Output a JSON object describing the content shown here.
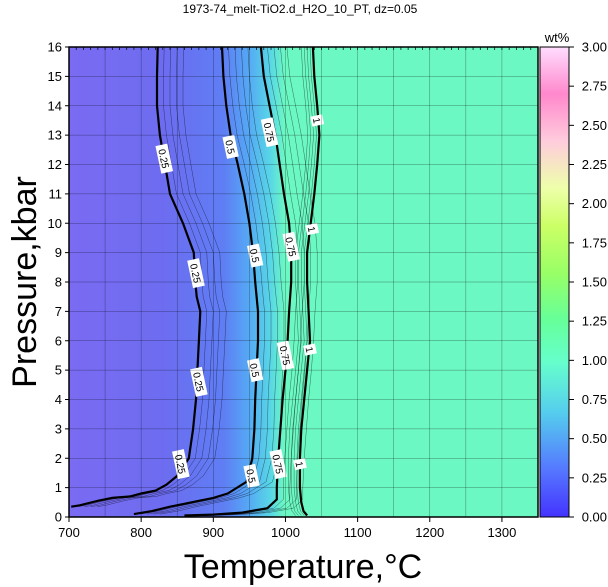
{
  "chart_data": {
    "type": "heatmap",
    "title": "1973-74_melt-TiO2.d_H2O_10_PT, dz=0.05",
    "xlabel": "Temperature,°C",
    "ylabel": "Pressure,kbar",
    "xlim": [
      700,
      1350
    ],
    "ylim": [
      0,
      16
    ],
    "x_ticks": [
      700,
      800,
      900,
      1000,
      1100,
      1200,
      1300
    ],
    "y_ticks": [
      0,
      1,
      2,
      3,
      4,
      5,
      6,
      7,
      8,
      9,
      10,
      11,
      12,
      13,
      14,
      15,
      16
    ],
    "grid": true,
    "colorbar": {
      "label": "wt%",
      "range": [
        0,
        3
      ],
      "ticks": [
        "0.00",
        "0.25",
        "0.50",
        "0.75",
        "1.00",
        "1.25",
        "1.50",
        "1.75",
        "2.00",
        "2.25",
        "2.50",
        "2.75",
        "3.00"
      ],
      "colors": [
        "#4433ff",
        "#5566ff",
        "#55bbff",
        "#66ffcc",
        "#66ff99",
        "#99ff66",
        "#ccff66",
        "#eeff99",
        "#ffccdd",
        "#ff99cc",
        "#ff66cc",
        "#ffccff"
      ]
    },
    "contours": [
      {
        "level": 0.25,
        "label": "0.25",
        "points": [
          [
            823,
            16
          ],
          [
            822,
            15
          ],
          [
            822,
            14
          ],
          [
            826,
            13
          ],
          [
            833,
            12
          ],
          [
            840,
            11
          ],
          [
            858,
            10
          ],
          [
            873,
            9
          ],
          [
            875,
            8
          ],
          [
            877,
            7.5
          ],
          [
            882,
            7
          ],
          [
            880,
            6
          ],
          [
            878,
            5
          ],
          [
            876,
            4
          ],
          [
            872,
            3
          ],
          [
            866,
            2
          ],
          [
            850,
            1.4
          ],
          [
            835,
            1.1
          ],
          [
            820,
            0.9
          ],
          [
            800,
            0.8
          ],
          [
            785,
            0.7
          ],
          [
            760,
            0.65
          ],
          [
            740,
            0.55
          ],
          [
            715,
            0.4
          ],
          [
            703,
            0.35
          ]
        ],
        "label_positions": [
          [
            832,
            12.2
          ],
          [
            876,
            8.3
          ],
          [
            880,
            4.6
          ],
          [
            855,
            1.8
          ]
        ]
      },
      {
        "level": 0.5,
        "label": "0.5",
        "points": [
          [
            912,
            16
          ],
          [
            914,
            15
          ],
          [
            918,
            14
          ],
          [
            924,
            13
          ],
          [
            934,
            12
          ],
          [
            943,
            11
          ],
          [
            950,
            10
          ],
          [
            955,
            9
          ],
          [
            958,
            8
          ],
          [
            962,
            7
          ],
          [
            962,
            6
          ],
          [
            960,
            5
          ],
          [
            958,
            4
          ],
          [
            957,
            3
          ],
          [
            954,
            2
          ],
          [
            946,
            1.2
          ],
          [
            920,
            0.8
          ],
          [
            900,
            0.65
          ],
          [
            880,
            0.55
          ],
          [
            860,
            0.45
          ],
          [
            840,
            0.35
          ],
          [
            815,
            0.2
          ],
          [
            790,
            0.1
          ]
        ],
        "label_positions": [
          [
            924,
            12.6
          ],
          [
            958,
            8.9
          ],
          [
            958,
            5.0
          ],
          [
            953,
            1.4
          ]
        ]
      },
      {
        "level": 0.75,
        "label": "0.75",
        "points": [
          [
            966,
            16
          ],
          [
            970,
            15
          ],
          [
            978,
            14
          ],
          [
            986,
            13
          ],
          [
            992,
            12
          ],
          [
            998,
            11
          ],
          [
            1005,
            10
          ],
          [
            1008,
            9
          ],
          [
            1008,
            8
          ],
          [
            1005,
            7
          ],
          [
            1003,
            6
          ],
          [
            1000,
            5
          ],
          [
            996,
            4
          ],
          [
            993,
            3
          ],
          [
            990,
            2
          ],
          [
            988,
            1
          ],
          [
            988,
            0.6
          ],
          [
            975,
            0.3
          ],
          [
            940,
            0.15
          ],
          [
            900,
            0.08
          ],
          [
            860,
            0.05
          ]
        ],
        "label_positions": [
          [
            978,
            13.1
          ],
          [
            1008,
            9.2
          ],
          [
            1000,
            5.5
          ],
          [
            990,
            1.8
          ]
        ]
      },
      {
        "level": 1.0,
        "label": "1",
        "points": [
          [
            1038,
            16
          ],
          [
            1040,
            15
          ],
          [
            1044,
            14
          ],
          [
            1047,
            13
          ],
          [
            1044,
            12
          ],
          [
            1040,
            11
          ],
          [
            1035,
            10
          ],
          [
            1030,
            9
          ],
          [
            1030,
            8
          ],
          [
            1032,
            7
          ],
          [
            1034,
            6
          ],
          [
            1030,
            5
          ],
          [
            1026,
            4
          ],
          [
            1022,
            3
          ],
          [
            1020,
            2
          ],
          [
            1020,
            1
          ],
          [
            1022,
            0.5
          ],
          [
            1025,
            0.2
          ],
          [
            1030,
            0.05
          ]
        ],
        "label_positions": [
          [
            1044,
            13.5
          ],
          [
            1037,
            9.8
          ],
          [
            1034,
            5.7
          ],
          [
            1020,
            1.8
          ]
        ]
      }
    ]
  }
}
